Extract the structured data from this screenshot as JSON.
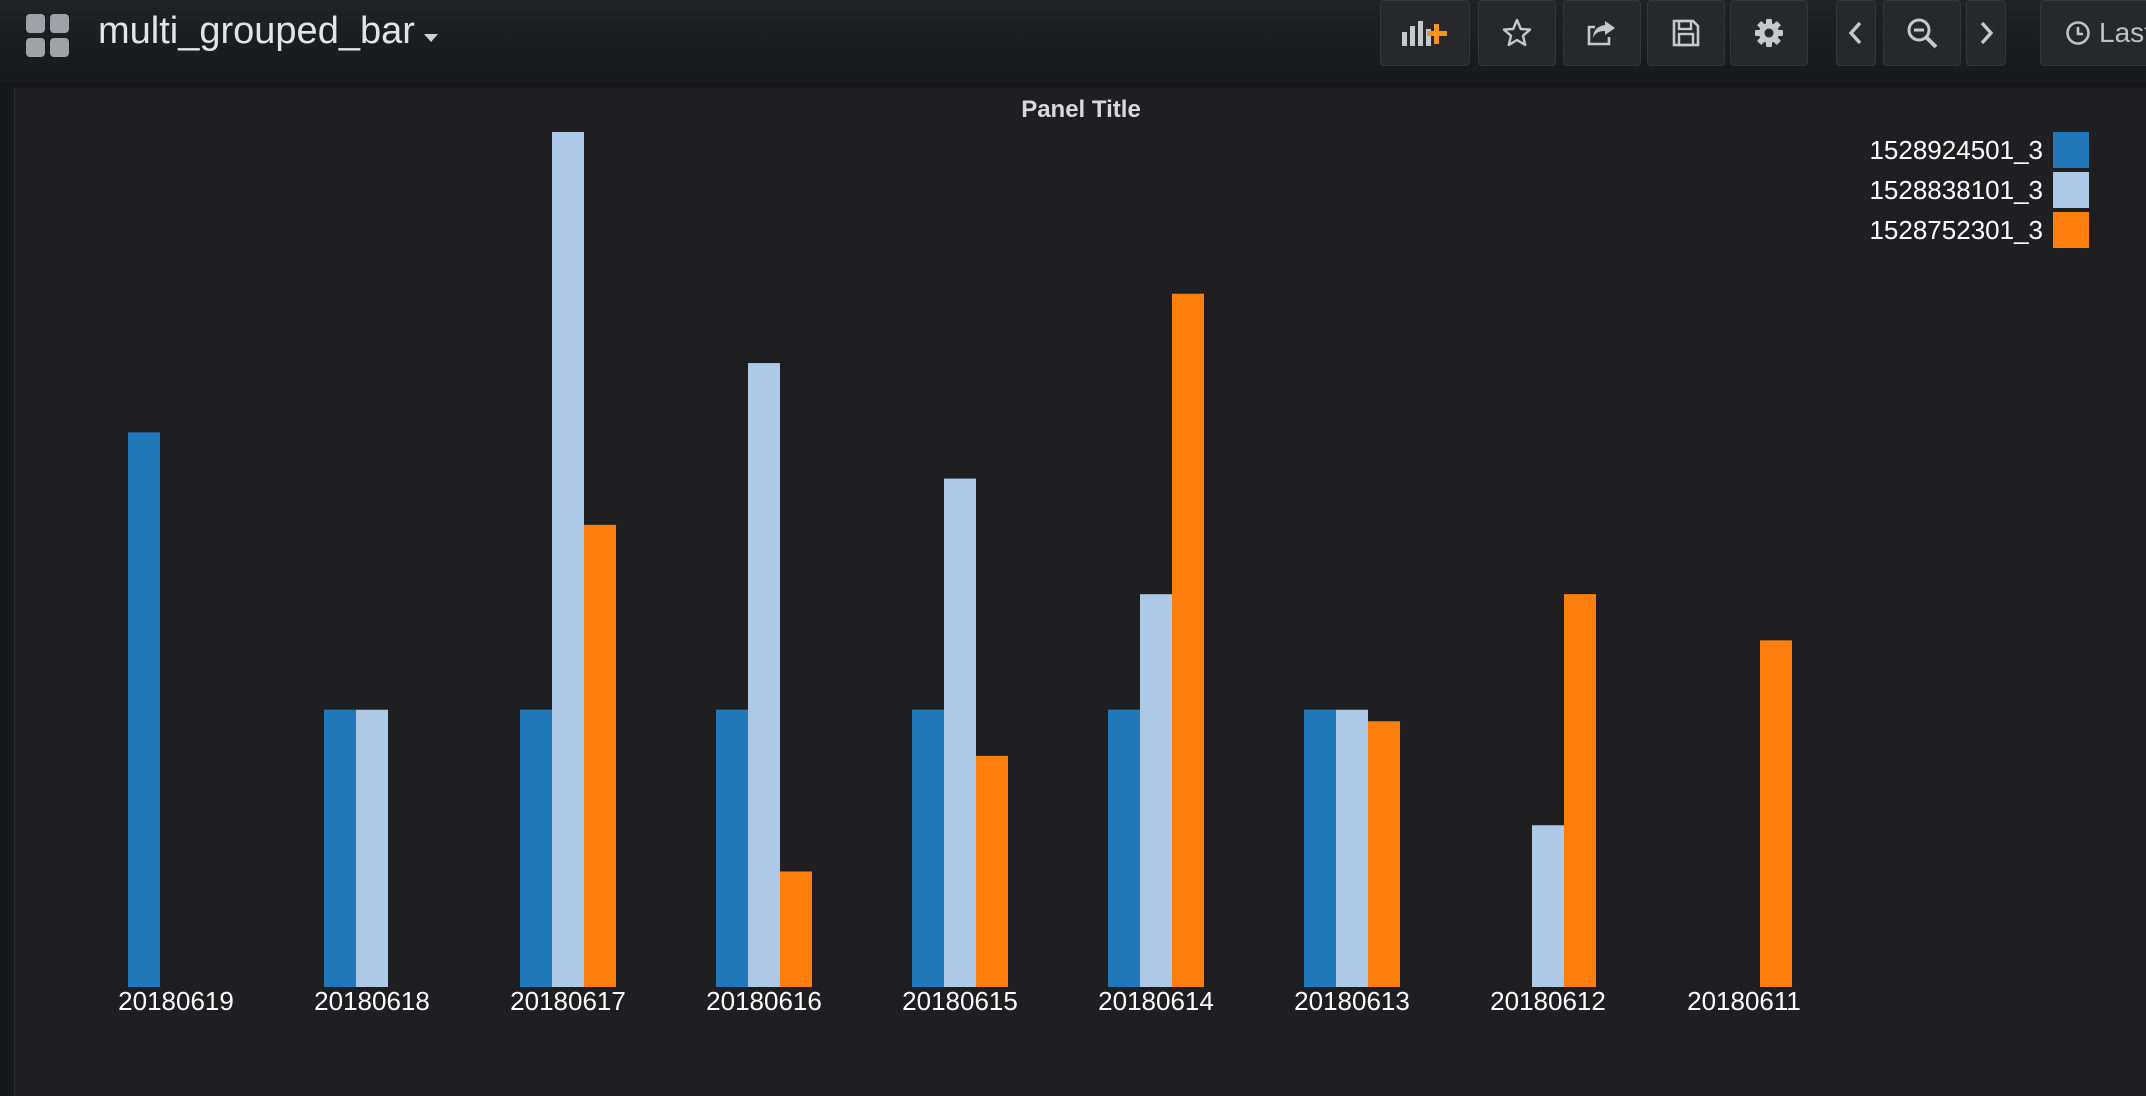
{
  "dashboard": {
    "title": "multi_grouped_bar",
    "icon": "grid-icon",
    "toolbar": {
      "add_panel_icon": "add-panel-icon",
      "star_icon": "star-icon",
      "share_icon": "share-icon",
      "save_icon": "save-icon",
      "settings_icon": "gear-icon",
      "prev_icon": "chevron-left-icon",
      "zoom_out_icon": "zoom-out-icon",
      "next_icon": "chevron-right-icon",
      "time_picker_label": "Last",
      "time_picker_icon": "clock-icon"
    }
  },
  "panel": {
    "title": "Panel Title"
  },
  "chart_data": {
    "type": "bar",
    "title": "Panel Title",
    "categories": [
      "20180619",
      "20180618",
      "20180617",
      "20180616",
      "20180615",
      "20180614",
      "20180613",
      "20180612",
      "20180611"
    ],
    "series": [
      {
        "name": "1528924501_3",
        "color": "#2178b8",
        "values": [
          4.8,
          2.4,
          2.4,
          2.4,
          2.4,
          2.4,
          2.4,
          null,
          null
        ]
      },
      {
        "name": "1528838101_3",
        "color": "#aec8e8",
        "values": [
          null,
          2.4,
          7.4,
          5.4,
          4.4,
          3.4,
          2.4,
          1.4,
          null
        ]
      },
      {
        "name": "1528752301_3",
        "color": "#ff7f0e",
        "values": [
          null,
          null,
          4.0,
          1.0,
          2.0,
          6.0,
          2.3,
          3.4,
          3.0
        ]
      }
    ],
    "ylim": [
      0,
      7.4
    ],
    "xlabel": "",
    "ylabel": "",
    "legend": "top-right",
    "grid": false
  }
}
